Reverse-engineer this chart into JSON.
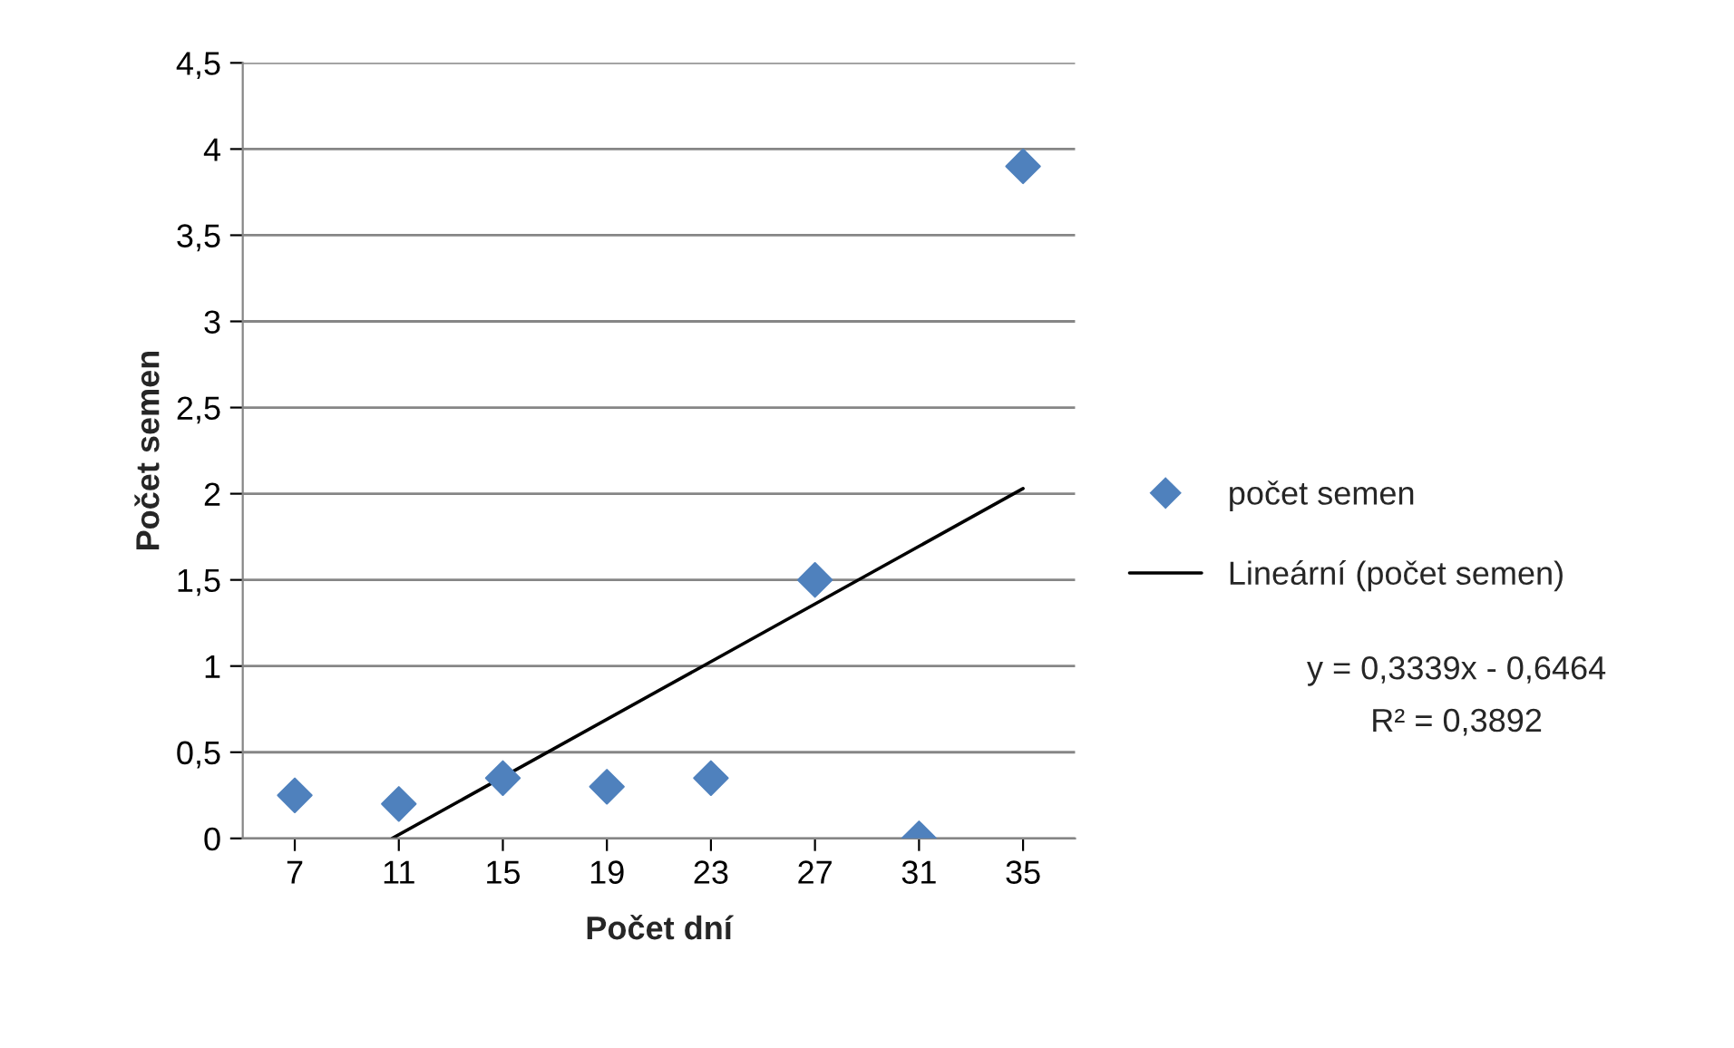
{
  "chart_data": {
    "type": "scatter",
    "xlabel": "Počet dní",
    "ylabel": "Počet semen",
    "series": [
      {
        "name": "počet semen",
        "color": "#4f81bd",
        "marker": "diamond",
        "x": [
          7,
          11,
          15,
          19,
          23,
          27,
          31,
          35
        ],
        "values": [
          0.25,
          0.2,
          0.35,
          0.3,
          0.35,
          1.5,
          0,
          3.9
        ]
      },
      {
        "name": "Lineární (počet semen)",
        "type": "line",
        "color": "#000000",
        "marker": "none",
        "line_style": "solid",
        "x": [
          10.74,
          35
        ],
        "values": [
          0,
          2.03
        ]
      }
    ],
    "xlim": [
      5,
      37
    ],
    "xticks": [
      7,
      11,
      15,
      19,
      23,
      27,
      31,
      35
    ],
    "ylim": [
      0,
      4.5
    ],
    "yticks": [
      0,
      {
        "value": 0.5,
        "label": "0,5"
      },
      1,
      {
        "value": 1.5,
        "label": "1,5"
      },
      2,
      {
        "value": 2.5,
        "label": "2,5"
      },
      3,
      {
        "value": 3.5,
        "label": "3,5"
      },
      4,
      {
        "value": 4.5,
        "label": "4,5"
      }
    ],
    "grid": "y",
    "legend": "right",
    "annotations": [
      "y = 0,3339x - 0,6464",
      "R² = 0,3892"
    ]
  }
}
